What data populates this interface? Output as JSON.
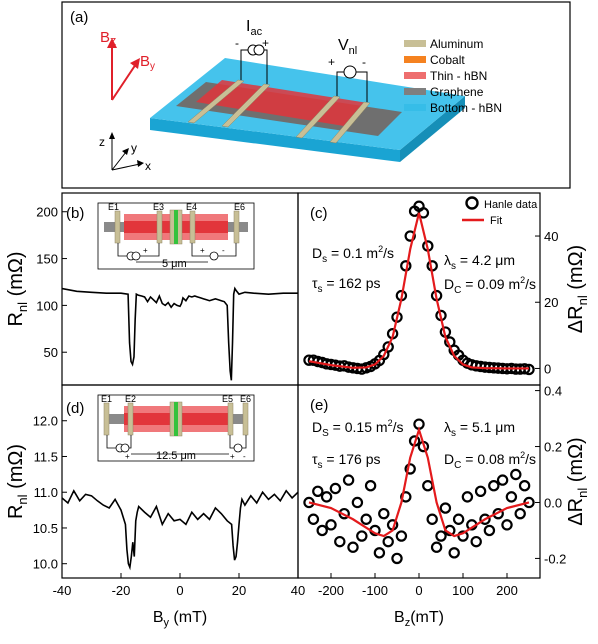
{
  "panel_labels": {
    "a": "(a)",
    "b": "(b)",
    "c": "(c)",
    "d": "(d)",
    "e": "(e)"
  },
  "schematic": {
    "axis_bz": "B",
    "axis_bz_sub": "Z",
    "axis_by": "B",
    "axis_by_sub": "y",
    "axis_z": "z",
    "axis_y": "y",
    "axis_x": "x",
    "iac": "I",
    "iac_sub": "ac",
    "iac_minus": "-",
    "iac_plus": "+",
    "vnl": "V",
    "vnl_sub": "nl",
    "vnl_plus": "+",
    "vnl_minus": "-",
    "legend": [
      {
        "label": "Aluminum",
        "color": "#c8bf96"
      },
      {
        "label": "Cobalt",
        "color": "#f58220"
      },
      {
        "label": "Thin - hBN",
        "color": "#ee6e6e"
      },
      {
        "label": "Graphene",
        "color": "#7f7f7f"
      },
      {
        "label": "Bottom - hBN",
        "color": "#36bde8"
      }
    ]
  },
  "inset_b": {
    "e1": "E1",
    "e3": "E3",
    "e4": "E4",
    "e6": "E6",
    "length": "5 μm",
    "plus1": "+",
    "plus2": "+",
    "minus": "-"
  },
  "inset_d": {
    "e1": "E1",
    "e2": "E2",
    "e5": "E5",
    "e6": "E6",
    "length": "12.5 μm",
    "plus1": "+",
    "plus2": "+",
    "minus": "-"
  },
  "params_c": {
    "ds": "D",
    "ds_sub": "s",
    "ds_val": " = 0.1 m",
    "ds_exp": "2",
    "ds_unit": "/s",
    "ts": "τ",
    "ts_sub": "s",
    "ts_val": " = 162 ps",
    "ls": "λ",
    "ls_sub": "s",
    "ls_val": " = 4.2 μm",
    "dc": "D",
    "dc_sub": "C",
    "dc_val": " = 0.09 m",
    "dc_exp": "2",
    "dc_unit": "/s"
  },
  "params_e": {
    "ds": "D",
    "ds_sub": "S",
    "ds_val": " = 0.15 m",
    "ds_exp": "2",
    "ds_unit": "/s",
    "ts": "τ",
    "ts_sub": "s",
    "ts_val": " = 176 ps",
    "ls": "λ",
    "ls_sub": "s",
    "ls_val": " = 5.1 μm",
    "dc": "D",
    "dc_sub": "C",
    "dc_val": " = 0.08 m",
    "dc_exp": "2",
    "dc_unit": "/s"
  },
  "chart_data": [
    {
      "id": "b",
      "type": "line",
      "xlabel": "",
      "ylabel": "R",
      "ylabel_sub": "nl",
      "ylabel_unit": " (mΩ)",
      "xlim": [
        -40,
        40
      ],
      "ylim": [
        15,
        220
      ],
      "yticks": [
        50,
        100,
        150,
        200
      ],
      "x": [
        -40,
        -35,
        -30,
        -25,
        -20,
        -17.6,
        -17.1,
        -16.6,
        -16.1,
        -15.6,
        -15.2,
        -14.8,
        -14.2,
        -13,
        -12,
        -11,
        -10,
        -9,
        -8,
        -7,
        -6,
        -5,
        -4,
        -3,
        -2,
        -1,
        0,
        0.5,
        1,
        2,
        3,
        4,
        5,
        6,
        7,
        8,
        9,
        10,
        11,
        12,
        13,
        14,
        15,
        16,
        16.5,
        17,
        17.4,
        17.8,
        18.2,
        18.6,
        19,
        20,
        22,
        25,
        30,
        35,
        40
      ],
      "y": [
        118,
        115,
        114,
        113,
        113,
        112,
        60,
        40,
        37,
        45,
        85,
        112,
        111,
        110,
        109,
        104,
        109,
        106,
        103,
        110,
        102,
        100,
        103,
        98,
        102,
        100,
        99,
        102,
        108,
        105,
        110,
        109,
        110,
        109,
        108,
        107,
        106,
        105,
        106,
        107,
        106,
        105,
        104,
        100,
        60,
        30,
        20,
        60,
        112,
        118,
        116,
        112,
        114,
        113,
        112,
        113,
        113
      ],
      "color": "#000000"
    },
    {
      "id": "c",
      "type": "scatter+line",
      "ylabel": "ΔR",
      "ylabel_sub": "nl",
      "ylabel_unit": " (mΩ)",
      "xlim": [
        -275,
        275
      ],
      "ylim": [
        -5,
        53
      ],
      "yticks": [
        0,
        20,
        40
      ],
      "series": [
        {
          "name": "Hanle data",
          "x": [
            -250,
            -240,
            -230,
            -220,
            -210,
            -200,
            -190,
            -180,
            -170,
            -160,
            -150,
            -140,
            -130,
            -120,
            -110,
            -100,
            -90,
            -80,
            -70,
            -60,
            -50,
            -40,
            -30,
            -20,
            -10,
            0,
            10,
            20,
            30,
            40,
            50,
            60,
            70,
            80,
            90,
            100,
            110,
            120,
            130,
            140,
            150,
            160,
            170,
            180,
            190,
            200,
            210,
            220,
            230,
            240,
            250
          ],
          "y": [
            2.5,
            2.5,
            2.1,
            1.8,
            1.4,
            1.2,
            1.0,
            0.7,
            0.8,
            0.4,
            0.2,
            0,
            -0.2,
            0.2,
            0.6,
            1.4,
            2.4,
            4.2,
            6.5,
            10.5,
            15.5,
            22,
            31,
            40,
            47.5,
            49,
            47,
            37,
            31,
            22,
            16,
            11,
            8,
            5.5,
            4,
            2.5,
            1.6,
            1.1,
            0.8,
            0.6,
            0.4,
            0.3,
            0.2,
            0.1,
            0,
            -0.1,
            0,
            -0.2,
            -0.2,
            -0.1,
            -0.3
          ]
        },
        {
          "name": "Fit",
          "x": [
            -250,
            -200,
            -150,
            -120,
            -100,
            -80,
            -60,
            -40,
            -20,
            0,
            20,
            40,
            60,
            80,
            100,
            120,
            150,
            200,
            250
          ],
          "y": [
            2.2,
            1.0,
            0.2,
            0.3,
            1.2,
            3.8,
            9.5,
            21,
            36,
            47,
            36,
            21,
            9.5,
            3.8,
            1.2,
            0.3,
            0.1,
            0,
            0
          ]
        }
      ]
    },
    {
      "id": "d",
      "type": "line",
      "xlabel": "B",
      "xlabel_sub": "y",
      "xlabel_unit": " (mT)",
      "ylabel": "R",
      "ylabel_sub": "nl",
      "ylabel_unit": " (mΩ)",
      "xlim": [
        -40,
        40
      ],
      "ylim": [
        9.8,
        12.5
      ],
      "xticks": [
        -40,
        -20,
        0,
        20,
        40
      ],
      "yticks": [
        10.0,
        10.5,
        11.0,
        11.5,
        12.0
      ],
      "x": [
        -40,
        -38,
        -36,
        -34,
        -32,
        -30,
        -28,
        -26,
        -24,
        -22,
        -20,
        -18.5,
        -18,
        -17.5,
        -17,
        -16.5,
        -16,
        -15.5,
        -15,
        -14.5,
        -14,
        -12,
        -10,
        -8,
        -6,
        -4,
        -2,
        0,
        2,
        4,
        6,
        8,
        10,
        12,
        14,
        16,
        17.5,
        18,
        18.5,
        19,
        19.5,
        20,
        20.5,
        21,
        22,
        24,
        26,
        28,
        30,
        32,
        34,
        36,
        38,
        40
      ],
      "y": [
        10.92,
        10.85,
        11.02,
        10.88,
        10.97,
        10.95,
        10.88,
        10.82,
        10.78,
        10.9,
        10.75,
        10.55,
        10.2,
        10.0,
        9.95,
        10.1,
        10.3,
        10.1,
        10.6,
        10.72,
        10.8,
        10.72,
        10.65,
        10.8,
        10.55,
        10.7,
        10.6,
        10.62,
        10.55,
        10.72,
        10.62,
        10.7,
        10.62,
        10.78,
        10.7,
        10.6,
        10.55,
        10.25,
        10.05,
        10.1,
        10.3,
        10.55,
        10.78,
        10.9,
        10.82,
        10.95,
        10.85,
        11.0,
        10.9,
        10.97,
        10.88,
        11.02,
        10.92,
        11.0
      ],
      "color": "#000000"
    },
    {
      "id": "e",
      "type": "scatter+line",
      "xlabel": "B",
      "xlabel_sub": "z",
      "xlabel_unit": "(mT)",
      "ylabel": "ΔR",
      "ylabel_sub": "nl",
      "ylabel_unit": " (mΩ)",
      "xlim": [
        -275,
        275
      ],
      "ylim": [
        -0.27,
        0.42
      ],
      "xticks": [
        -200,
        -100,
        0,
        100,
        200
      ],
      "yticks": [
        -0.2,
        0.0,
        0.2,
        0.4
      ],
      "series": [
        {
          "name": "Hanle data",
          "x": [
            -250,
            -240,
            -230,
            -220,
            -210,
            -200,
            -190,
            -180,
            -170,
            -160,
            -150,
            -140,
            -130,
            -120,
            -110,
            -100,
            -90,
            -80,
            -70,
            -60,
            -50,
            -40,
            -30,
            -20,
            -10,
            0,
            10,
            20,
            30,
            40,
            50,
            60,
            70,
            80,
            90,
            100,
            110,
            120,
            130,
            140,
            150,
            160,
            170,
            180,
            190,
            200,
            210,
            220,
            230,
            240,
            250
          ],
          "y": [
            0.0,
            -0.06,
            0.04,
            -0.1,
            0.02,
            -0.08,
            0.05,
            -0.14,
            -0.04,
            0.08,
            -0.16,
            0.0,
            -0.12,
            -0.06,
            0.06,
            -0.1,
            -0.18,
            -0.04,
            -0.14,
            -0.08,
            -0.2,
            -0.12,
            0.02,
            0.12,
            0.22,
            0.28,
            0.2,
            0.06,
            -0.06,
            -0.16,
            -0.12,
            -0.02,
            -0.1,
            -0.18,
            -0.06,
            -0.12,
            0.02,
            -0.08,
            -0.14,
            0.04,
            -0.06,
            -0.1,
            0.06,
            -0.04,
            0.08,
            -0.08,
            0.02,
            0.1,
            -0.04,
            0.06,
            0.0
          ]
        },
        {
          "name": "Fit",
          "x": [
            -250,
            -200,
            -150,
            -120,
            -100,
            -80,
            -60,
            -40,
            -20,
            0,
            20,
            40,
            60,
            80,
            100,
            150,
            200,
            250
          ],
          "y": [
            0.0,
            -0.02,
            -0.06,
            -0.09,
            -0.11,
            -0.12,
            -0.1,
            0.0,
            0.16,
            0.26,
            0.16,
            0.0,
            -0.1,
            -0.12,
            -0.11,
            -0.06,
            -0.02,
            0.0
          ]
        }
      ]
    }
  ]
}
